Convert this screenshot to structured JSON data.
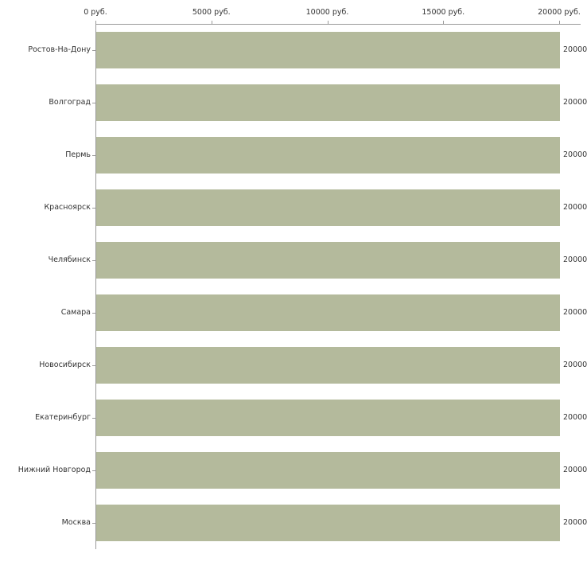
{
  "chart_data": {
    "type": "bar",
    "orientation": "horizontal",
    "title": "",
    "xlabel": "",
    "ylabel": "",
    "xlim": [
      0,
      20000
    ],
    "grid": false,
    "legend": "none",
    "categories": [
      "Ростов-На-Дону",
      "Волгоград",
      "Пермь",
      "Красноярск",
      "Челябинск",
      "Самара",
      "Новосибирск",
      "Екатеринбург",
      "Нижний Новгород",
      "Москва"
    ],
    "values": [
      20000,
      20000,
      20000,
      20000,
      20000,
      20000,
      20000,
      20000,
      20000,
      20000
    ],
    "value_labels": [
      "20000",
      "20000",
      "20000",
      "20000",
      "20000",
      "20000",
      "20000",
      "20000",
      "20000",
      "20000"
    ],
    "x_ticks": [
      {
        "value": 0,
        "label": "0 руб."
      },
      {
        "value": 5000,
        "label": "5000 руб."
      },
      {
        "value": 10000,
        "label": "10000 руб."
      },
      {
        "value": 15000,
        "label": "15000 руб."
      },
      {
        "value": 20000,
        "label": "20000 руб."
      }
    ]
  },
  "colors": {
    "bar": "#b4ba9c",
    "axis": "#9a9a9a",
    "text": "#333333",
    "background": "#ffffff"
  }
}
